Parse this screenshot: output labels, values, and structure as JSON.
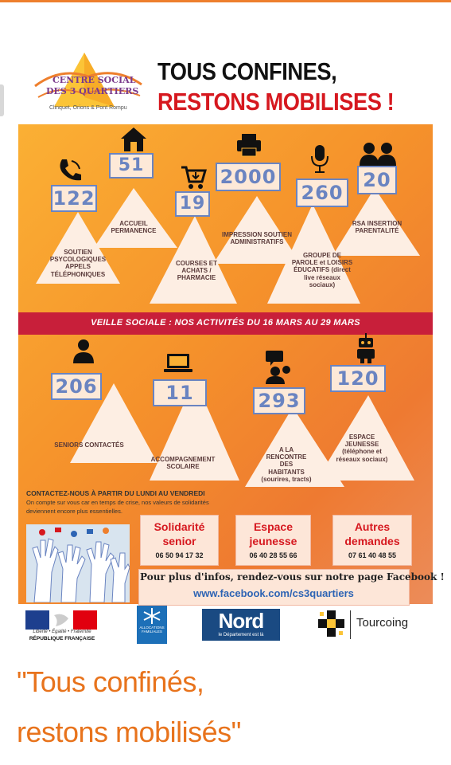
{
  "header": {
    "title_line1": "TOUS CONFINES,",
    "title_line2": "RESTONS MOBILISES !",
    "logo_line1": "CENTRE SOCIAL",
    "logo_line2": "DES 3 QUARTIERS",
    "logo_sub": "Clinquet, Orions & Pont Rompu"
  },
  "activities_top": [
    {
      "icon": "phone-icon",
      "number": "122",
      "label": "SOUTIEN PSYCOLOGIQUES APPELS TÉLÉPHONIQUES"
    },
    {
      "icon": "house-icon",
      "number": "51",
      "label": "ACCUEIL PERMANENCE"
    },
    {
      "icon": "cart-icon",
      "number": "19",
      "label": "COURSES ET ACHATS / PHARMACIE"
    },
    {
      "icon": "printer-icon",
      "number": "2000",
      "label": "IMPRESSION SOUTIEN ADMINISTRATIFS"
    },
    {
      "icon": "microphone-icon",
      "number": "260",
      "label": "GROUPE DE PAROLE et LOISIRS ÉDUCATIFS (direct live réseaux sociaux)"
    },
    {
      "icon": "people-icon",
      "number": "20",
      "label": "RSA INSERTION PARENTALITÉ"
    }
  ],
  "band_text": "VEILLE SOCIALE : NOS ACTIVITÉS DU 16 MARS AU 29 MARS",
  "activities_bottom": [
    {
      "icon": "person-icon",
      "number": "206",
      "label": "SENIORS CONTACTÉS"
    },
    {
      "icon": "laptop-icon",
      "number": "11",
      "label": "ACCOMPAGNEMENT SCOLAIRE"
    },
    {
      "icon": "chat-icon",
      "number": "293",
      "label": "A LA RENCONTRE DES HABITANTS (sourires, tracts)"
    },
    {
      "icon": "robot-icon",
      "number": "120",
      "label": "ESPACE JEUNESSE (téléphone et réseaux sociaux)"
    }
  ],
  "contact": {
    "title": "CONTACTEZ-NOUS À PARTIR DU LUNDI AU VENDREDI",
    "body": "On compte sur vous car en temps de crise, nos valeurs de solidarités deviennent encore plus essentielles."
  },
  "services": [
    {
      "title": "Solidarité senior",
      "phone": "06 50 94 17 32"
    },
    {
      "title": "Espace jeunesse",
      "phone": "06 40 28 55 66"
    },
    {
      "title": "Autres demandes",
      "phone": "07 61 40 48 55"
    }
  ],
  "facebook": {
    "line1": "Pour plus d'infos, rendez-vous sur notre page Facebook !",
    "url": "www.facebook.com/cs3quartiers"
  },
  "partners": {
    "rf_motto": "Liberté • Égalité • Fraternité",
    "rf_name": "RÉPUBLIQUE FRANÇAISE",
    "caf": "ALLOCATIONS FAMILIALES",
    "nord": "Nord",
    "nord_sub": "le Département est là",
    "tourcoing": "Tourcoing"
  },
  "caption": {
    "line1": "\"Tous confinés,",
    "line2": "restons mobilisés\""
  },
  "colors": {
    "accent": "#ee7f2d",
    "red": "#d6181f",
    "band": "#c81f3a",
    "number": "#6a84c1"
  }
}
